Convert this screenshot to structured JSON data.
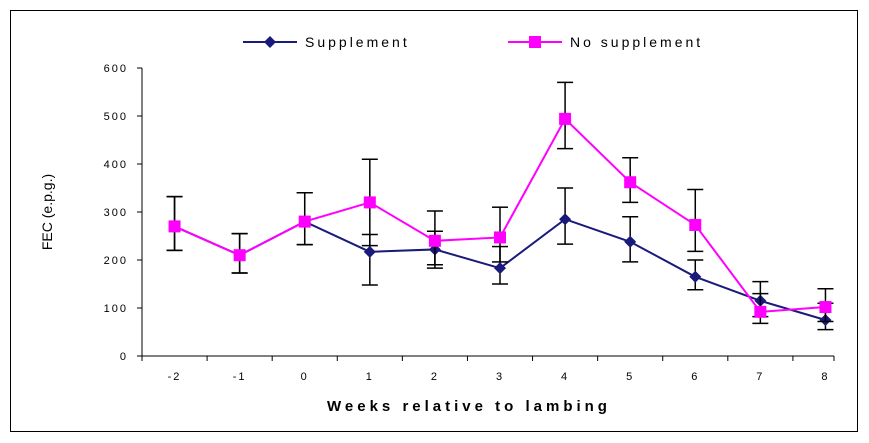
{
  "chart_data": {
    "type": "line",
    "xlabel": "Weeks relative to lambing",
    "ylabel": "FEC (e.p.g.)",
    "categories": [
      "-2",
      "-1",
      "0",
      "1",
      "2",
      "3",
      "4",
      "5",
      "6",
      "7",
      "8"
    ],
    "ylim": [
      0,
      600
    ],
    "yticks": [
      0,
      100,
      200,
      300,
      400,
      500,
      600
    ],
    "ytick_labels": [
      "0",
      "100",
      "200",
      "300",
      "400",
      "500",
      "600"
    ],
    "grid": false,
    "legend_position": "top-center",
    "series": [
      {
        "name": "Supplement",
        "color": "#1a1a7a",
        "marker": "diamond",
        "values": [
          270,
          210,
          280,
          217,
          222,
          183,
          285,
          238,
          165,
          115,
          75
        ],
        "err_low": [
          220,
          173,
          232,
          148,
          183,
          150,
          233,
          196,
          138,
          82,
          55
        ],
        "err_high": [
          332,
          255,
          340,
          253,
          260,
          228,
          350,
          290,
          200,
          155,
          110
        ]
      },
      {
        "name": "No supplement",
        "color": "#ff00ff",
        "marker": "square",
        "values": [
          270,
          210,
          280,
          320,
          240,
          247,
          494,
          362,
          273,
          92,
          102
        ],
        "err_low": [
          220,
          173,
          232,
          230,
          190,
          196,
          432,
          320,
          218,
          68,
          72
        ],
        "err_high": [
          332,
          255,
          340,
          410,
          302,
          310,
          570,
          413,
          347,
          130,
          140
        ]
      }
    ]
  }
}
